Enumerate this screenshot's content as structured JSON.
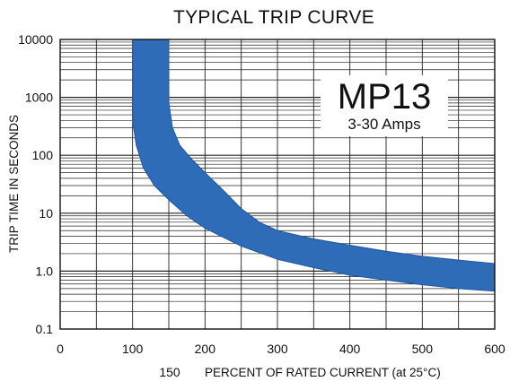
{
  "chart_data": {
    "type": "area",
    "title": "TYPICAL TRIP CURVE",
    "xlabel": "PERCENT OF RATED CURRENT (at 25°C)",
    "ylabel": "TRIP TIME IN SECONDS",
    "extra_x_label": {
      "value": 150,
      "text": "150"
    },
    "xlim": [
      0,
      600
    ],
    "ylim": [
      0.1,
      10000
    ],
    "yscale": "log",
    "grid": true,
    "x_ticks": [
      {
        "value": 0,
        "label": "0"
      },
      {
        "value": 100,
        "label": "100"
      },
      {
        "value": 200,
        "label": "200"
      },
      {
        "value": 300,
        "label": "300"
      },
      {
        "value": 400,
        "label": "400"
      },
      {
        "value": 500,
        "label": "500"
      },
      {
        "value": 600,
        "label": "600"
      }
    ],
    "y_ticks": [
      {
        "value": 10000,
        "label": "10000"
      },
      {
        "value": 1000,
        "label": "1000"
      },
      {
        "value": 100,
        "label": "100"
      },
      {
        "value": 10,
        "label": "10"
      },
      {
        "value": 1,
        "label": "1.0"
      },
      {
        "value": 0.1,
        "label": "0.1"
      }
    ],
    "annotation": {
      "product": "MP13",
      "range": "3-30 Amps"
    },
    "band": {
      "color": "#2e6cb8",
      "lower": [
        {
          "x": 100,
          "y": 10000
        },
        {
          "x": 100,
          "y": 400
        },
        {
          "x": 105,
          "y": 150
        },
        {
          "x": 115,
          "y": 60
        },
        {
          "x": 130,
          "y": 30
        },
        {
          "x": 150,
          "y": 17
        },
        {
          "x": 175,
          "y": 9
        },
        {
          "x": 200,
          "y": 5.5
        },
        {
          "x": 250,
          "y": 2.7
        },
        {
          "x": 300,
          "y": 1.6
        },
        {
          "x": 350,
          "y": 1.15
        },
        {
          "x": 400,
          "y": 0.85
        },
        {
          "x": 450,
          "y": 0.7
        },
        {
          "x": 500,
          "y": 0.58
        },
        {
          "x": 550,
          "y": 0.5
        },
        {
          "x": 600,
          "y": 0.45
        }
      ],
      "upper": [
        {
          "x": 150,
          "y": 10000
        },
        {
          "x": 150,
          "y": 800
        },
        {
          "x": 155,
          "y": 300
        },
        {
          "x": 165,
          "y": 150
        },
        {
          "x": 180,
          "y": 90
        },
        {
          "x": 200,
          "y": 50
        },
        {
          "x": 225,
          "y": 25
        },
        {
          "x": 250,
          "y": 12
        },
        {
          "x": 275,
          "y": 7
        },
        {
          "x": 300,
          "y": 5
        },
        {
          "x": 350,
          "y": 3.6
        },
        {
          "x": 400,
          "y": 2.8
        },
        {
          "x": 450,
          "y": 2.2
        },
        {
          "x": 500,
          "y": 1.8
        },
        {
          "x": 550,
          "y": 1.55
        },
        {
          "x": 600,
          "y": 1.35
        }
      ]
    }
  }
}
